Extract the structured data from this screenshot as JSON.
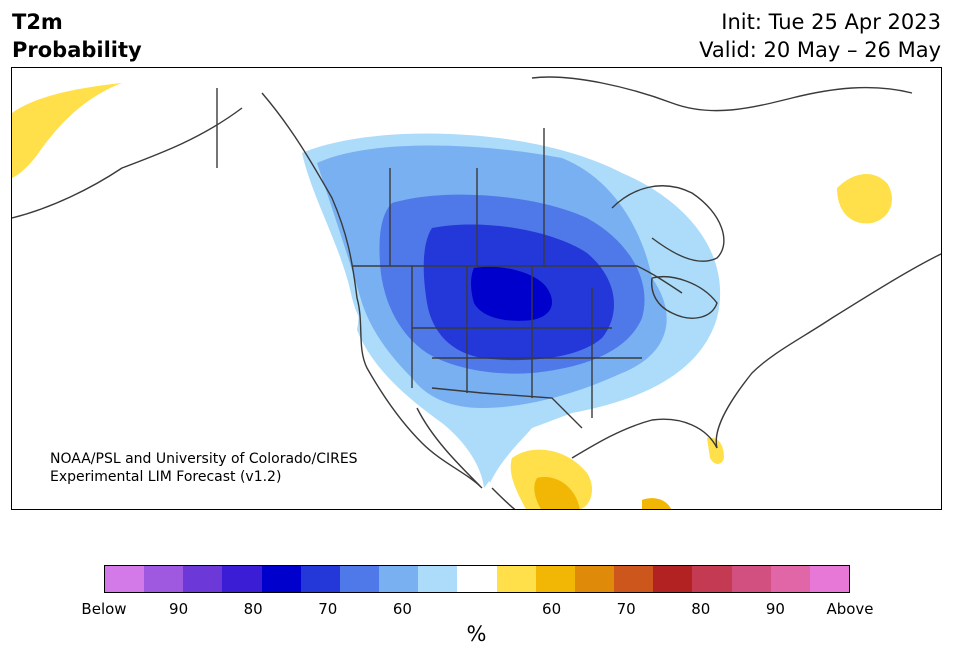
{
  "header": {
    "title_line1": "T2m",
    "title_line2": "Probability",
    "init": "Init: Tue 25 Apr 2023",
    "valid": "Valid: 20 May – 26 May"
  },
  "map": {
    "credit_line1": "NOAA/PSL and University of Colorado/CIRES",
    "credit_line2": "Experimental LIM Forecast (v1.2)"
  },
  "colorbar": {
    "colors": [
      "#d47ae8",
      "#9f59e0",
      "#6d38d8",
      "#3a1dd4",
      "#0000cc",
      "#2437d8",
      "#4f78e8",
      "#78b0f2",
      "#acdcfa",
      "#ffffff",
      "#ffe04a",
      "#f2b705",
      "#e08a09",
      "#cc561b",
      "#b22222",
      "#c33a52",
      "#d25080",
      "#e066a8",
      "#e878d8"
    ],
    "tick_labels": [
      "Below",
      "90",
      "80",
      "70",
      "60",
      "60",
      "70",
      "80",
      "90",
      "Above"
    ],
    "unit": "%"
  }
}
